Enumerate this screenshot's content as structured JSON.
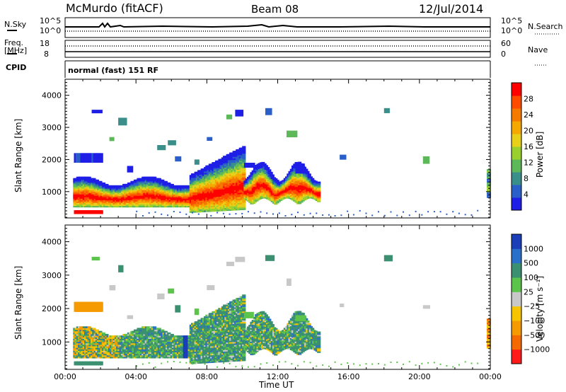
{
  "header": {
    "title": "McMurdo (fitACF)",
    "beam": "Beam 08",
    "date": "12/Jul/2014"
  },
  "top_panels": {
    "nsky_label": "N.Sky",
    "nsearch_label": "N.Search",
    "nsky_ticks": [
      "10^5",
      "10^0"
    ],
    "nsearch_ticks": [
      "10^5",
      "10^0"
    ],
    "freq_label": "Freq.",
    "freq_unit": "[MHz]",
    "freq_ticks": [
      "18",
      "8"
    ],
    "nave_label": "Nave",
    "nave_ticks": [
      "60",
      "0"
    ],
    "cpid_label": "CPID",
    "cpid_value": "normal (fast) 151 RF"
  },
  "chart_data": [
    {
      "type": "heatmap",
      "title": "",
      "xlabel": "Time UT",
      "ylabel": "Slant Range [km]",
      "xlim": [
        0,
        24
      ],
      "ylim": [
        180,
        4500
      ],
      "yticks": [
        1000,
        2000,
        3000,
        4000
      ],
      "colorbar": {
        "label": "Power [dB]",
        "ticks": [
          "4",
          "8",
          "12",
          "16",
          "20",
          "24",
          "28"
        ],
        "range": [
          0,
          32
        ],
        "colors": [
          "#1e1ee6",
          "#2a5fc9",
          "#3a8f8a",
          "#5db85a",
          "#9ad02e",
          "#e8d01a",
          "#f5a800",
          "#f57a00",
          "#ff4a00",
          "#ff0000"
        ]
      },
      "regions": [
        {
          "t0": 0.4,
          "t1": 14.3,
          "r0": 500,
          "r1": 1400,
          "value": "strong echoes 12-32 dB"
        },
        {
          "t0": 0.5,
          "t1": 2.0,
          "r0": 300,
          "r1": 400,
          "value": "near-range 28 dB"
        },
        {
          "t0": 0.5,
          "t1": 2.0,
          "r0": 1850,
          "r1": 2200,
          "value": "weak echoes 4-8 dB"
        },
        {
          "t0": 23.8,
          "t1": 24.0,
          "r0": 800,
          "r1": 1700,
          "value": "8-16 dB"
        }
      ]
    },
    {
      "type": "heatmap",
      "title": "",
      "xlabel": "Time UT",
      "ylabel": "Slant Range [km]",
      "xlim": [
        0,
        24
      ],
      "ylim": [
        180,
        4500
      ],
      "xticks": [
        "00:00",
        "04:00",
        "08:00",
        "12:00",
        "16:00",
        "20:00",
        "00:00"
      ],
      "yticks": [
        1000,
        2000,
        3000,
        4000
      ],
      "colorbar": {
        "label": "Velocity [m s⁻¹]",
        "ticks": [
          "1000",
          "500",
          "100",
          "25",
          "−25",
          "−100",
          "−500",
          "−1000"
        ],
        "colors": [
          "#1a3fb8",
          "#2a6fc9",
          "#3a9070",
          "#5cc44a",
          "#c8c8c8",
          "#f7c400",
          "#f59a00",
          "#f56a00",
          "#ff1a1a"
        ]
      },
      "regions": [
        {
          "t0": 0.4,
          "t1": 14.3,
          "r0": 500,
          "r1": 1400,
          "value": "mostly 25-500 m/s"
        },
        {
          "t0": 0.5,
          "t1": 2.0,
          "r0": 1850,
          "r1": 2100,
          "value": "−100 to −500 m/s"
        },
        {
          "t0": 23.8,
          "t1": 24.0,
          "r0": 800,
          "r1": 1700,
          "value": "−100 to −500 m/s"
        }
      ]
    }
  ]
}
